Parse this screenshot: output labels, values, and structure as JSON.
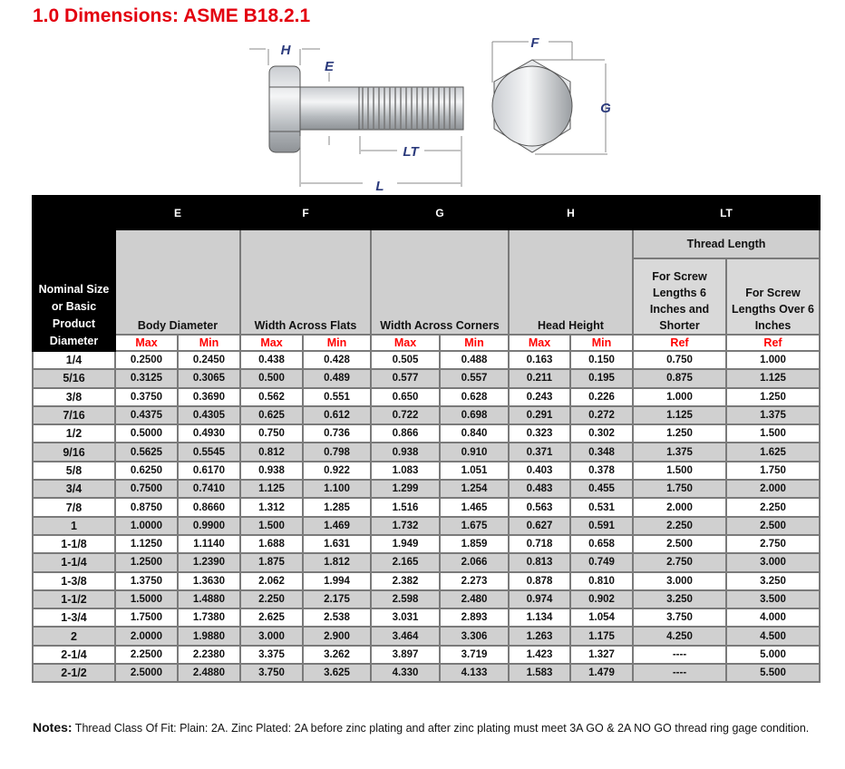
{
  "title": "1.0  Dimensions: ASME B18.2.1",
  "drawing": {
    "labels": {
      "H": "H",
      "E": "E",
      "LT": "LT",
      "L": "L",
      "F": "F",
      "G": "G"
    }
  },
  "colors": {
    "title": "#e3000f",
    "minmax": "#ff0000",
    "header_black": "#000000",
    "header_gray": "#cfcfcf"
  },
  "table": {
    "nominal_header": "Nominal Size or Basic Product Diameter",
    "groups": [
      {
        "letter": "E",
        "desc": "Body Diameter",
        "subs": [
          "Max",
          "Min"
        ]
      },
      {
        "letter": "F",
        "desc": "Width Across Flats",
        "subs": [
          "Max",
          "Min"
        ]
      },
      {
        "letter": "G",
        "desc": "Width Across Corners",
        "subs": [
          "Max",
          "Min"
        ]
      },
      {
        "letter": "H",
        "desc": "Head Height",
        "subs": [
          "Max",
          "Min"
        ]
      },
      {
        "letter": "LT",
        "desc": "Thread Length",
        "cols": [
          "For Screw Lengths 6 Inches and Shorter",
          "For Screw Lengths Over 6 Inches"
        ],
        "subs": [
          "Ref",
          "Ref"
        ]
      }
    ],
    "rows": [
      [
        "1/4",
        "0.2500",
        "0.2450",
        "0.438",
        "0.428",
        "0.505",
        "0.488",
        "0.163",
        "0.150",
        "0.750",
        "1.000"
      ],
      [
        "5/16",
        "0.3125",
        "0.3065",
        "0.500",
        "0.489",
        "0.577",
        "0.557",
        "0.211",
        "0.195",
        "0.875",
        "1.125"
      ],
      [
        "3/8",
        "0.3750",
        "0.3690",
        "0.562",
        "0.551",
        "0.650",
        "0.628",
        "0.243",
        "0.226",
        "1.000",
        "1.250"
      ],
      [
        "7/16",
        "0.4375",
        "0.4305",
        "0.625",
        "0.612",
        "0.722",
        "0.698",
        "0.291",
        "0.272",
        "1.125",
        "1.375"
      ],
      [
        "1/2",
        "0.5000",
        "0.4930",
        "0.750",
        "0.736",
        "0.866",
        "0.840",
        "0.323",
        "0.302",
        "1.250",
        "1.500"
      ],
      [
        "9/16",
        "0.5625",
        "0.5545",
        "0.812",
        "0.798",
        "0.938",
        "0.910",
        "0.371",
        "0.348",
        "1.375",
        "1.625"
      ],
      [
        "5/8",
        "0.6250",
        "0.6170",
        "0.938",
        "0.922",
        "1.083",
        "1.051",
        "0.403",
        "0.378",
        "1.500",
        "1.750"
      ],
      [
        "3/4",
        "0.7500",
        "0.7410",
        "1.125",
        "1.100",
        "1.299",
        "1.254",
        "0.483",
        "0.455",
        "1.750",
        "2.000"
      ],
      [
        "7/8",
        "0.8750",
        "0.8660",
        "1.312",
        "1.285",
        "1.516",
        "1.465",
        "0.563",
        "0.531",
        "2.000",
        "2.250"
      ],
      [
        "1",
        "1.0000",
        "0.9900",
        "1.500",
        "1.469",
        "1.732",
        "1.675",
        "0.627",
        "0.591",
        "2.250",
        "2.500"
      ],
      [
        "1-1/8",
        "1.1250",
        "1.1140",
        "1.688",
        "1.631",
        "1.949",
        "1.859",
        "0.718",
        "0.658",
        "2.500",
        "2.750"
      ],
      [
        "1-1/4",
        "1.2500",
        "1.2390",
        "1.875",
        "1.812",
        "2.165",
        "2.066",
        "0.813",
        "0.749",
        "2.750",
        "3.000"
      ],
      [
        "1-3/8",
        "1.3750",
        "1.3630",
        "2.062",
        "1.994",
        "2.382",
        "2.273",
        "0.878",
        "0.810",
        "3.000",
        "3.250"
      ],
      [
        "1-1/2",
        "1.5000",
        "1.4880",
        "2.250",
        "2.175",
        "2.598",
        "2.480",
        "0.974",
        "0.902",
        "3.250",
        "3.500"
      ],
      [
        "1-3/4",
        "1.7500",
        "1.7380",
        "2.625",
        "2.538",
        "3.031",
        "2.893",
        "1.134",
        "1.054",
        "3.750",
        "4.000"
      ],
      [
        "2",
        "2.0000",
        "1.9880",
        "3.000",
        "2.900",
        "3.464",
        "3.306",
        "1.263",
        "1.175",
        "4.250",
        "4.500"
      ],
      [
        "2-1/4",
        "2.2500",
        "2.2380",
        "3.375",
        "3.262",
        "3.897",
        "3.719",
        "1.423",
        "1.327",
        "----",
        "5.000"
      ],
      [
        "2-1/2",
        "2.5000",
        "2.4880",
        "3.750",
        "3.625",
        "4.330",
        "4.133",
        "1.583",
        "1.479",
        "----",
        "5.500"
      ]
    ]
  },
  "notes": {
    "label": "Notes:",
    "text": " Thread Class Of Fit: Plain: 2A. Zinc Plated: 2A before zinc plating and after zinc plating must meet 3A GO & 2A NO GO thread ring gage condition."
  }
}
